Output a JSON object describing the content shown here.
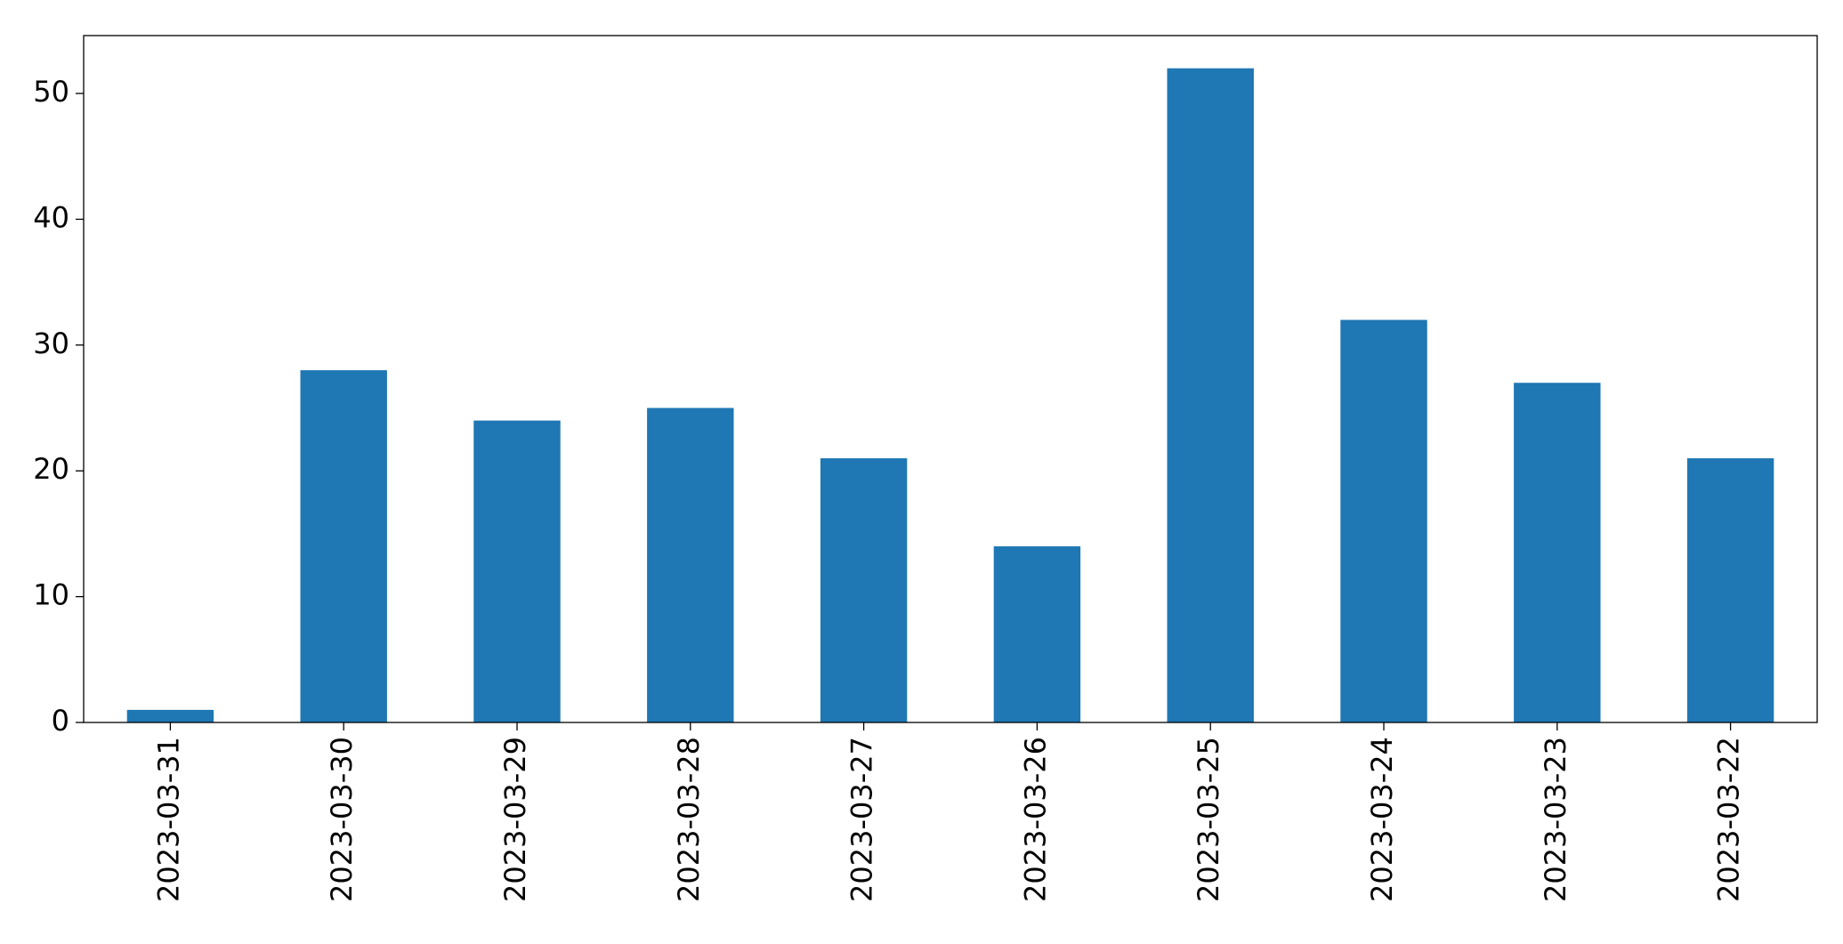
{
  "chart_data": {
    "type": "bar",
    "categories": [
      "2023-03-31",
      "2023-03-30",
      "2023-03-29",
      "2023-03-28",
      "2023-03-27",
      "2023-03-26",
      "2023-03-25",
      "2023-03-24",
      "2023-03-23",
      "2023-03-22"
    ],
    "values": [
      1,
      28,
      24,
      25,
      21,
      14,
      52,
      32,
      27,
      21
    ],
    "color": "#1f77b4",
    "ylim": [
      0,
      54.6
    ],
    "yticks": [
      0,
      10,
      20,
      30,
      40,
      50
    ],
    "grid": false
  }
}
